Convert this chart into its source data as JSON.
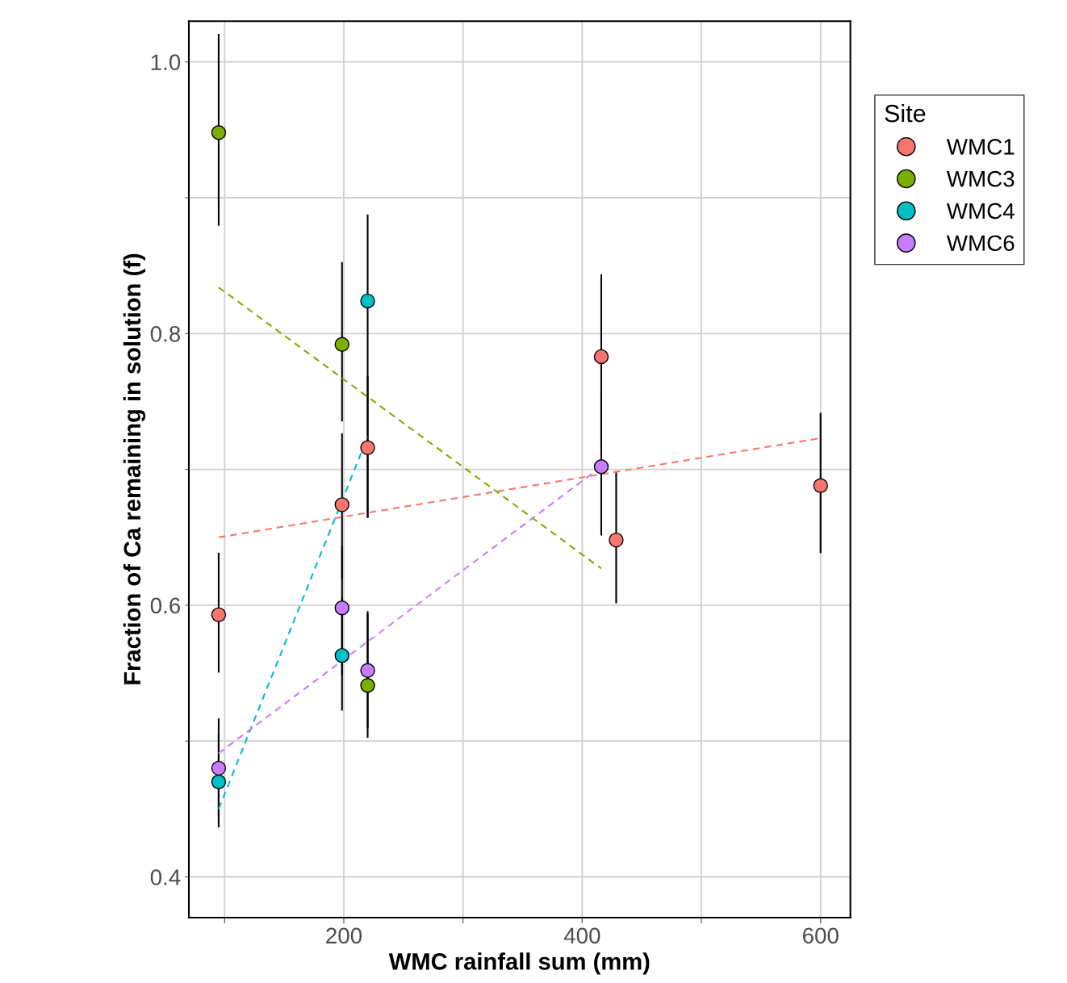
{
  "chart_data": {
    "type": "scatter",
    "xlabel": "WMC rainfall sum (mm)",
    "ylabel": "Fraction of Ca remaining in solution (f)",
    "legend_title": "Site",
    "legend": "right",
    "grid": true,
    "marker": "circle",
    "xlim": [
      70,
      625
    ],
    "xticks": [
      {
        "value": 100,
        "label": null
      },
      200,
      {
        "value": 300,
        "label": null
      },
      400,
      {
        "value": 500,
        "label": null
      },
      600
    ],
    "ylim": [
      0.37,
      1.03
    ],
    "yticks": [
      0.4,
      {
        "value": 0.5,
        "label": null
      },
      0.6,
      {
        "value": 0.7,
        "label": null
      },
      0.8,
      {
        "value": 0.9,
        "label": null
      },
      {
        "value": 1.0,
        "label": "1.0"
      }
    ],
    "series": [
      {
        "name": "WMC1",
        "color": "#f8766d",
        "x": [
          95,
          198.5,
          220,
          416,
          428.5,
          600
        ],
        "values": [
          0.593,
          0.674,
          0.716,
          0.783,
          0.648,
          0.688
        ],
        "errors": [
          [
            0.551,
            0.638
          ],
          [
            0.62,
            0.726
          ],
          [
            0.665,
            0.768
          ],
          [
            0.72,
            0.843
          ],
          [
            0.602,
            0.698
          ],
          [
            0.639,
            0.741
          ]
        ]
      },
      {
        "name": "WMC3",
        "color": "#7cae00",
        "x": [
          95,
          198.5,
          220
        ],
        "values": [
          0.948,
          0.792,
          0.541
        ],
        "errors": [
          [
            0.88,
            1.02
          ],
          [
            0.736,
            0.852
          ],
          [
            0.503,
            0.595
          ]
        ]
      },
      {
        "name": "WMC4",
        "color": "#00bfc4",
        "x": [
          95,
          198.5,
          220
        ],
        "values": [
          0.47,
          0.563,
          0.824
        ],
        "errors": [
          [
            0.437,
            0.504
          ],
          [
            0.523,
            0.605
          ],
          [
            0.665,
            0.887
          ]
        ]
      },
      {
        "name": "WMC6",
        "color": "#c77cff",
        "x": [
          95,
          198.5,
          220,
          416
        ],
        "values": [
          0.48,
          0.598,
          0.552,
          0.702
        ],
        "errors": [
          [
            0.445,
            0.516
          ],
          [
            0.549,
            0.643
          ],
          [
            0.51,
            0.593
          ],
          [
            0.652,
            0.756
          ]
        ]
      },
      {
        "type": "line",
        "line_style": "dashed",
        "marker": "none",
        "color": "#f8766d",
        "x": [
          95,
          600
        ],
        "values": [
          0.65,
          0.723
        ]
      },
      {
        "type": "line",
        "line_style": "dashed",
        "marker": "none",
        "color": "#7cae00",
        "x": [
          95,
          416
        ],
        "values": [
          0.834,
          0.627
        ]
      },
      {
        "type": "line",
        "line_style": "dashed",
        "marker": "none",
        "color": "#00bfc4",
        "x": [
          95,
          220
        ],
        "values": [
          0.45,
          0.724
        ]
      },
      {
        "type": "line",
        "line_style": "dashed",
        "marker": "none",
        "color": "#c77cff",
        "x": [
          95,
          416
        ],
        "values": [
          0.491,
          0.702
        ]
      }
    ]
  }
}
